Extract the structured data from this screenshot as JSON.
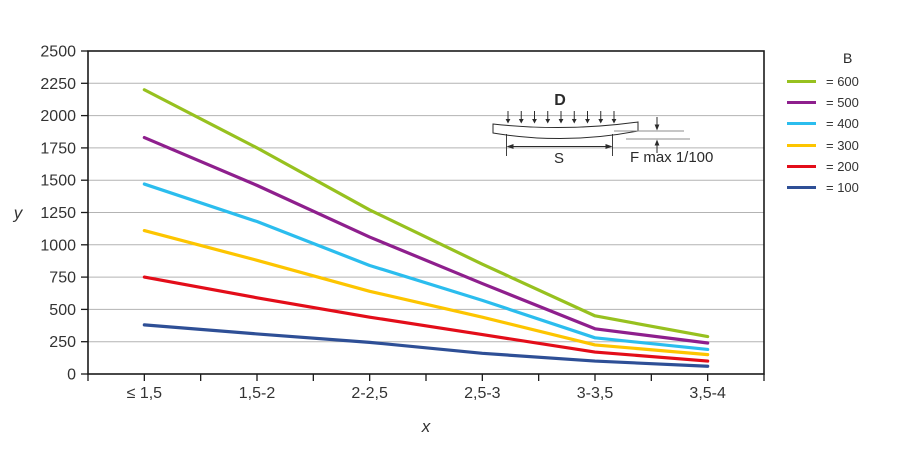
{
  "chart_data": {
    "type": "line",
    "title": "",
    "xlabel": "x",
    "ylabel": "y",
    "categories": [
      "≤ 1,5",
      "1,5-2",
      "2-2,5",
      "2,5-3",
      "3-3,5",
      "3,5-4"
    ],
    "y_ticks": [
      0,
      250,
      500,
      750,
      1000,
      1250,
      1500,
      1750,
      2000,
      2250,
      2500
    ],
    "ylim": [
      0,
      2500
    ],
    "grid": "horizontal",
    "legend_position": "right",
    "legend_title": "B",
    "series": [
      {
        "name": "= 600",
        "b": 600,
        "color": "#97C11F",
        "values": [
          2200,
          1750,
          1270,
          850,
          450,
          290
        ]
      },
      {
        "name": "= 500",
        "b": 500,
        "color": "#8E1F8D",
        "values": [
          1830,
          1460,
          1060,
          700,
          350,
          240
        ]
      },
      {
        "name": "= 400",
        "b": 400,
        "color": "#2BBDEE",
        "values": [
          1470,
          1180,
          840,
          570,
          280,
          190
        ]
      },
      {
        "name": "= 300",
        "b": 300,
        "color": "#FDC500",
        "values": [
          1110,
          880,
          640,
          440,
          225,
          150
        ]
      },
      {
        "name": "= 200",
        "b": 200,
        "color": "#E30D19",
        "values": [
          750,
          590,
          440,
          305,
          170,
          100
        ]
      },
      {
        "name": "= 100",
        "b": 100,
        "color": "#2E4F96",
        "values": [
          380,
          310,
          245,
          160,
          100,
          60
        ]
      }
    ]
  },
  "axes": {
    "x_label": "x",
    "y_label": "y"
  },
  "inset": {
    "load_label": "D",
    "span_label": "S",
    "deflection_label": "F max 1/100",
    "load_arrow_count": 9
  },
  "colors": {
    "grid": "#B3B3B3",
    "axis": "#1A1A1A",
    "tick_text": "#333333",
    "inset_ink": "#2B2B2B",
    "inset_ref": "#8C8C8C"
  }
}
